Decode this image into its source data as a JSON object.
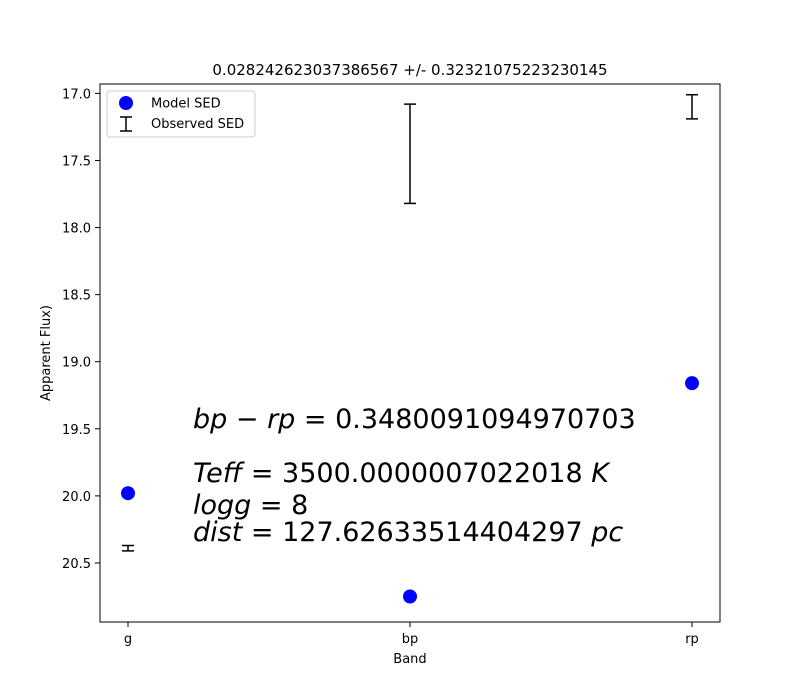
{
  "chart_data": {
    "type": "scatter",
    "title": "0.028242623037386567 +/- 0.32321075223230145",
    "xlabel": "Band",
    "ylabel": "Apparent Flux)",
    "categories": [
      "g",
      "bp",
      "rp"
    ],
    "ylim": [
      20.94,
      16.93
    ],
    "y_inverted": true,
    "yticks": [
      17.0,
      17.5,
      18.0,
      18.5,
      19.0,
      19.5,
      20.0,
      20.5
    ],
    "ytick_labels": [
      "17.0",
      "17.5",
      "18.0",
      "18.5",
      "19.0",
      "19.5",
      "20.0",
      "20.5"
    ],
    "grid": false,
    "legend_position": "upper-left",
    "series": [
      {
        "name": "Model SED",
        "kind": "points",
        "color": "#0000ff",
        "values": [
          19.98,
          20.75,
          19.16
        ]
      },
      {
        "name": "Observed SED",
        "kind": "errorbar",
        "color": "#000000",
        "center": [
          20.39,
          17.45,
          17.1
        ],
        "err": [
          0.02,
          0.37,
          0.09
        ]
      }
    ],
    "annotations": [
      {
        "id": "color",
        "text_italic_a": "bp",
        "text_mid": " − ",
        "text_italic_b": "rp",
        "text_rest": " = 0.3480091094970703"
      },
      {
        "id": "teff",
        "text_italic_a": "Teff",
        "text_rest": " = 3500.0000007022018 ",
        "text_italic_c": "K"
      },
      {
        "id": "logg",
        "text_italic_a": "logg",
        "text_rest": " = 8"
      },
      {
        "id": "dist",
        "text_italic_a": "dist",
        "text_rest": " = 127.62633514404297 ",
        "text_italic_c": "pc"
      }
    ]
  }
}
